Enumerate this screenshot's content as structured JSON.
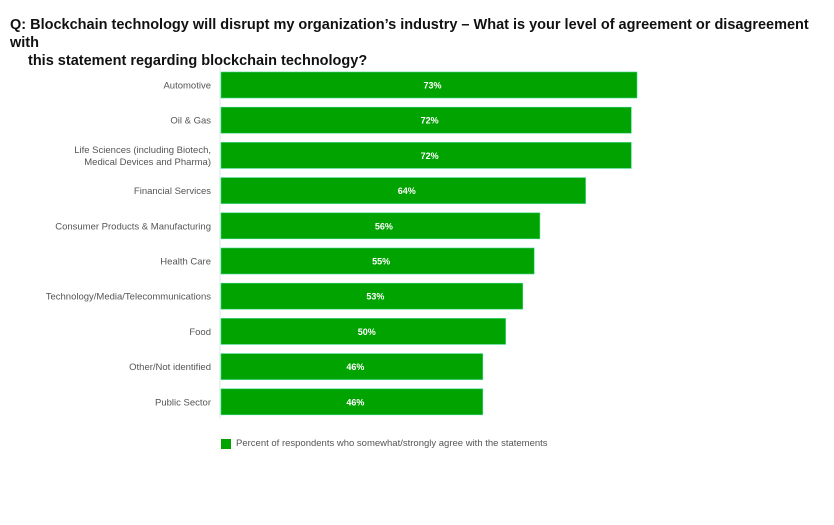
{
  "title_line1": "Q: Blockchain technology will disrupt my organization’s industry – What is your level of agreement or disagreement with",
  "title_line2": "this statement regarding blockchain technology?",
  "chart_data": {
    "type": "bar",
    "orientation": "horizontal",
    "title": "Q: Blockchain technology will disrupt my organization’s industry – What is your level of agreement or disagreement with this statement regarding blockchain technology?",
    "categories": [
      [
        "Automotive"
      ],
      [
        "Oil & Gas"
      ],
      [
        "Life Sciences (including Biotech,",
        "Medical Devices and Pharma)"
      ],
      [
        "Financial Services"
      ],
      [
        "Consumer Products & Manufacturing"
      ],
      [
        "Health Care"
      ],
      [
        "Technology/Media/Telecommunications"
      ],
      [
        "Food"
      ],
      [
        "Other/Not identified"
      ],
      [
        "Public Sector"
      ]
    ],
    "series": [
      {
        "name": "Percent of respondents who somewhat/strongly agree with the statements",
        "values": [
          73,
          72,
          72,
          64,
          56,
          55,
          53,
          50,
          46,
          46
        ],
        "labels": [
          "73%",
          "72%",
          "72%",
          "64%",
          "56%",
          "55%",
          "53%",
          "50%",
          "46%",
          "46%"
        ],
        "color": "#00a300"
      }
    ],
    "xlabel": "",
    "ylabel": "",
    "xlim": [
      0,
      73
    ],
    "grid": false,
    "legend": "bottom-left"
  },
  "legend_label": "Percent of respondents who somewhat/strongly agree with the statements"
}
